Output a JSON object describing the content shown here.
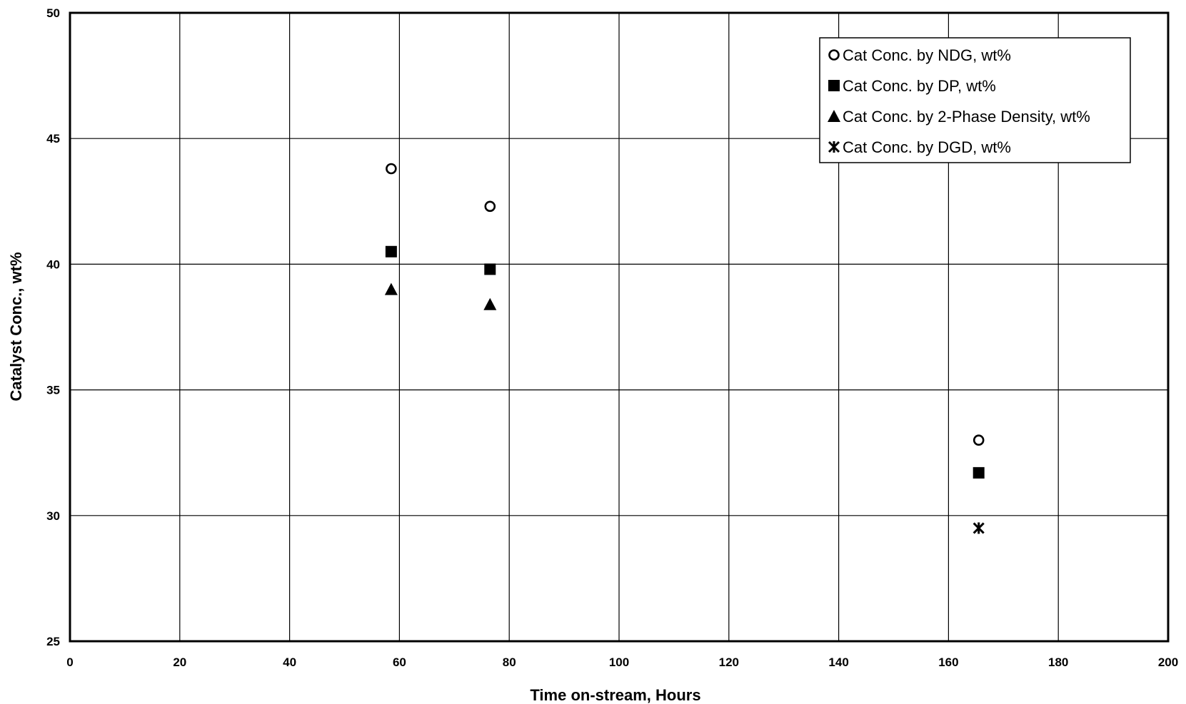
{
  "chart_data": {
    "type": "scatter",
    "title": "",
    "xlabel": "Time on-stream, Hours",
    "ylabel": "Catalyst Conc., wt%",
    "xlim": [
      0,
      200
    ],
    "ylim": [
      25,
      50
    ],
    "xticks": [
      0,
      20,
      40,
      60,
      80,
      100,
      120,
      140,
      160,
      180,
      200
    ],
    "yticks": [
      25,
      30,
      35,
      40,
      45,
      50
    ],
    "grid": true,
    "legend_position": "top-right",
    "series": [
      {
        "name": "Cat Conc. by NDG, wt%",
        "marker": "open-circle",
        "x": [
          58.5,
          76.5,
          165.5
        ],
        "y": [
          43.8,
          42.3,
          33.0
        ]
      },
      {
        "name": "Cat Conc. by DP, wt%",
        "marker": "filled-square",
        "x": [
          58.5,
          76.5,
          165.5
        ],
        "y": [
          40.5,
          39.8,
          31.7
        ]
      },
      {
        "name": "Cat Conc. by 2-Phase Density, wt%",
        "marker": "filled-triangle",
        "x": [
          58.5,
          76.5
        ],
        "y": [
          39.0,
          38.4
        ]
      },
      {
        "name": "Cat Conc. by DGD, wt%",
        "marker": "asterisk",
        "x": [
          165.5
        ],
        "y": [
          29.5
        ]
      }
    ]
  }
}
